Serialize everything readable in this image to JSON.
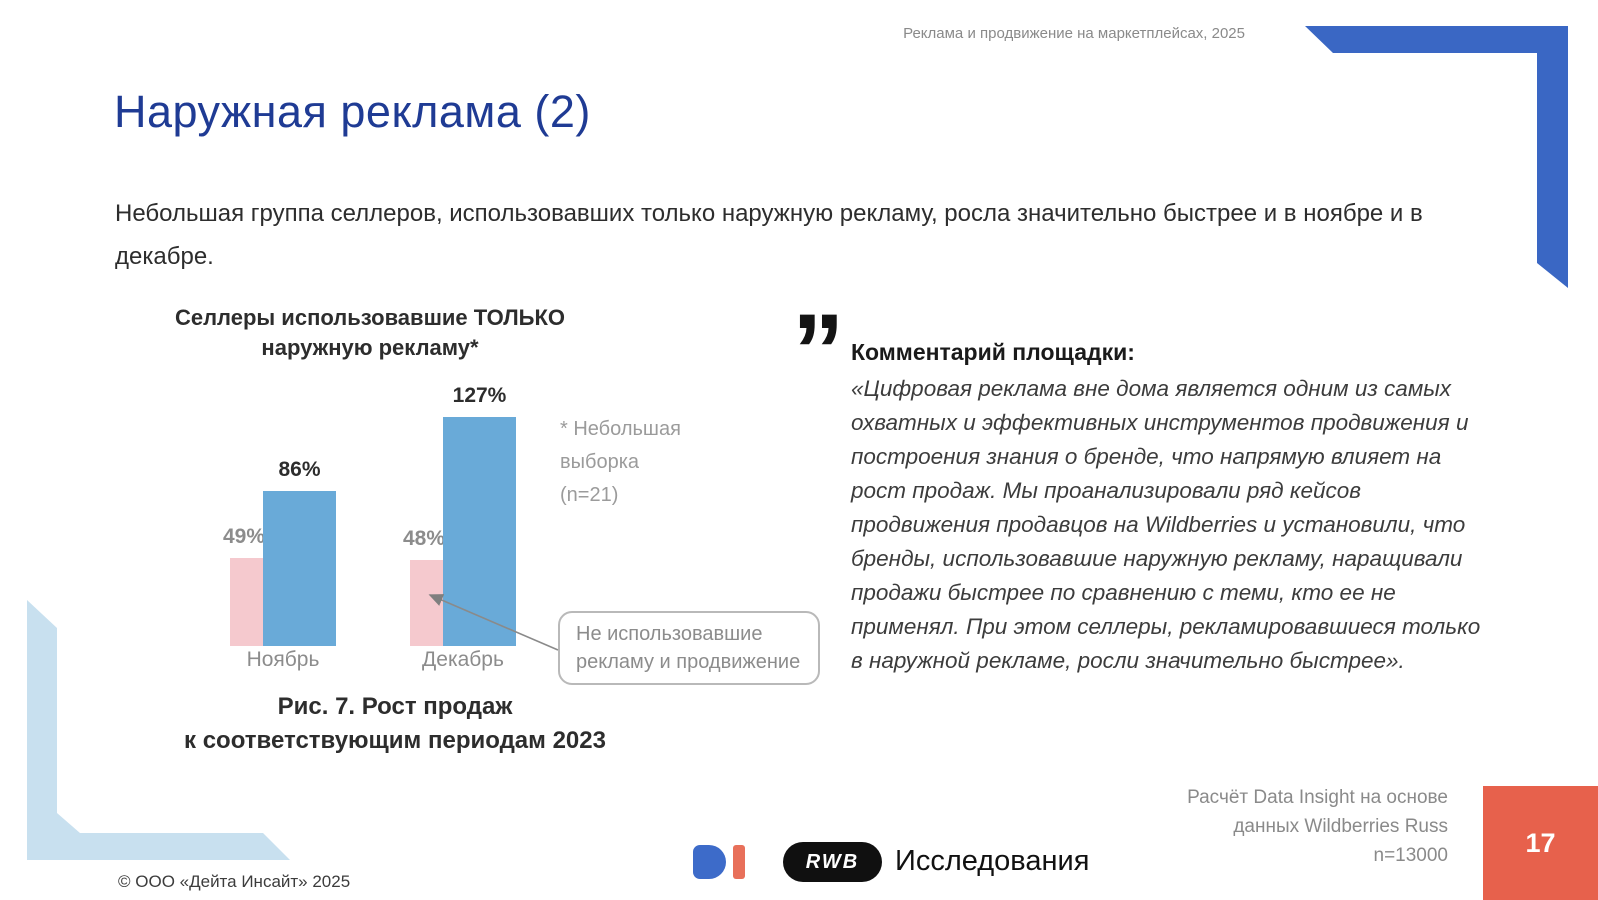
{
  "header": {
    "note": "Реклама и продвижение на маркетплейсах, 2025",
    "title": "Наружная реклама (2)"
  },
  "intro": {
    "text": "Небольшая группа селлеров, использовавших только наружную рекламу, росла значительно быстрее и в ноябре и в декабре."
  },
  "chart_data": {
    "type": "bar",
    "title": "Селлеры использовавшие ТОЛЬКО\nнаружную рекламу*",
    "categories": [
      "Ноябрь",
      "Декабрь"
    ],
    "series": [
      {
        "name": "Не использовавшие рекламу и продвижение",
        "color": "#f5c9ce",
        "values": [
          49,
          48
        ],
        "labels": [
          "49%",
          "48%"
        ]
      },
      {
        "name": "Селлеры использовавшие только наружную рекламу",
        "color": "#69aad8",
        "values": [
          86,
          127
        ],
        "labels": [
          "86%",
          "127%"
        ]
      }
    ],
    "unit": "%",
    "ylim": [
      0,
      140
    ],
    "grid": false,
    "legend": "none",
    "note": "* Небольшая\nвыборка\n(n=21)",
    "callout": "Не использовавшие\nрекламу и продвижение",
    "caption": "Рис. 7. Рост продаж\nк соответствующим периодам 2023"
  },
  "comment": {
    "quote_mark": "”",
    "heading": "Комментарий площадки:",
    "text": "«Цифровая реклама вне дома является одним из самых охватных и эффективных инструментов продвижения и построения знания о бренде, что напрямую влияет на рост продаж. Мы проанализировали ряд кейсов продвижения продавцов на Wildberries и установили, что бренды, использовавшие наружную рекламу, наращивали продажи быстрее по сравнению с теми, кто ее не применял. При этом селлеры, рекламировавшиеся только в наружной рекламе, росли значительно быстрее»."
  },
  "footer": {
    "rwb_label": "RWB",
    "research_label": "Исследования",
    "source": "Расчёт Data Insight на основе\nданных Wildberries Russ\nn=13000",
    "page_number": "17",
    "copyright": "© ООО «Дейта Инсайт» 2025"
  },
  "colors": {
    "accent_blue": "#3a67c4",
    "light_blue_corner": "#c8e0ef",
    "title_blue": "#1f3b94",
    "bar_pink": "#f5c9ce",
    "bar_blue": "#69aad8",
    "page_box_orange": "#e7614c",
    "di_logo_blue": "#3d6bc9",
    "di_logo_orange": "#e8705a"
  }
}
